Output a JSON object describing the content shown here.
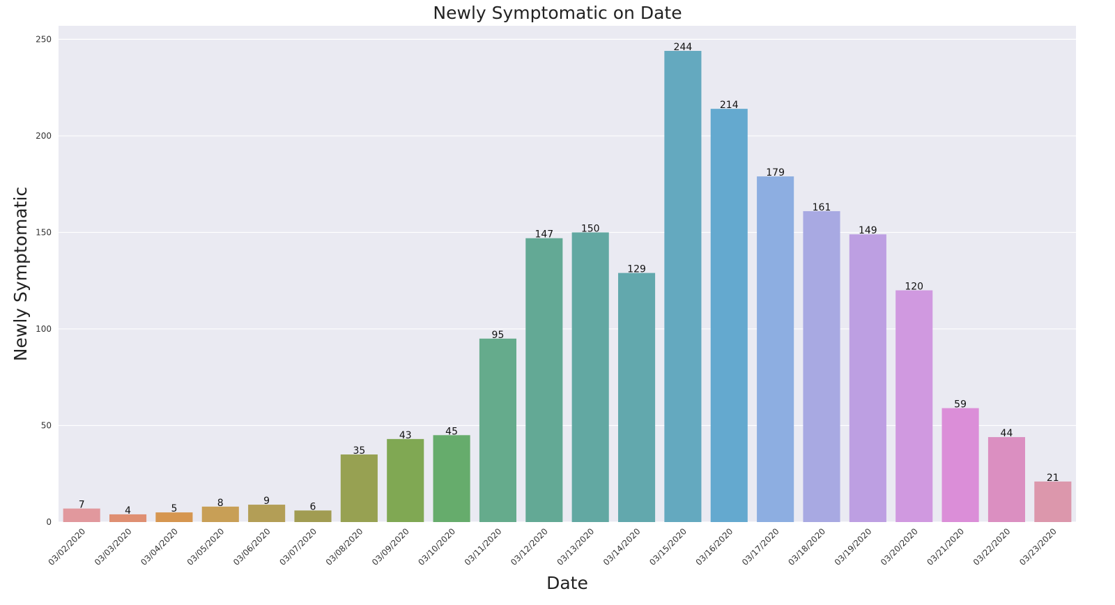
{
  "chart_data": {
    "type": "bar",
    "title": "Newly Symptomatic on Date",
    "xlabel": "Date",
    "ylabel": "Newly Symptomatic",
    "ylim": [
      0,
      257
    ],
    "yticks": [
      0,
      50,
      100,
      150,
      200,
      250
    ],
    "grid": true,
    "categories": [
      "03/02/2020",
      "03/03/2020",
      "03/04/2020",
      "03/05/2020",
      "03/06/2020",
      "03/07/2020",
      "03/08/2020",
      "03/09/2020",
      "03/10/2020",
      "03/11/2020",
      "03/12/2020",
      "03/13/2020",
      "03/14/2020",
      "03/15/2020",
      "03/16/2020",
      "03/17/2020",
      "03/18/2020",
      "03/19/2020",
      "03/20/2020",
      "03/21/2020",
      "03/22/2020",
      "03/23/2020"
    ],
    "values": [
      7,
      4,
      5,
      8,
      9,
      6,
      35,
      43,
      45,
      95,
      147,
      150,
      129,
      244,
      214,
      179,
      161,
      149,
      120,
      59,
      44,
      21
    ],
    "colors": [
      "#e1989d",
      "#df8f72",
      "#d69650",
      "#c89f56",
      "#b39e56",
      "#a19c52",
      "#97a152",
      "#80a853",
      "#66ac6c",
      "#65ab8c",
      "#63a995",
      "#62a8a2",
      "#62a8ad",
      "#64a9bf",
      "#64a9cf",
      "#8daee1",
      "#a8a9e2",
      "#bd9fe2",
      "#d099e0",
      "#db8ed8",
      "#db8fc1",
      "#dc97ac"
    ],
    "plot_background": "#eaeaf2",
    "grid_color": "#ffffff"
  }
}
